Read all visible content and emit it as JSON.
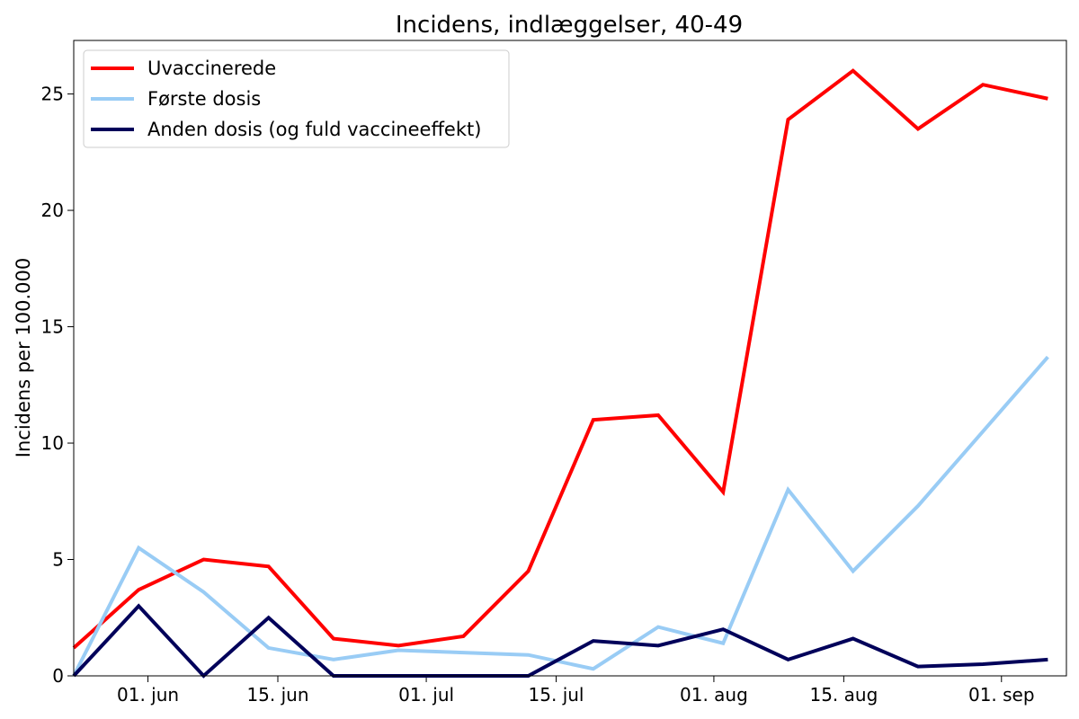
{
  "chart_data": {
    "type": "line",
    "title": "Incidens, indlæggelser, 40-49",
    "xlabel": "",
    "ylabel": "Incidens per 100.000",
    "xlim": [
      "2021-05-24",
      "2021-09-08"
    ],
    "ylim": [
      0,
      27.3
    ],
    "x_ticks": [
      {
        "date": "2021-06-01",
        "label": "01. jun"
      },
      {
        "date": "2021-06-15",
        "label": "15. jun"
      },
      {
        "date": "2021-07-01",
        "label": "01. jul"
      },
      {
        "date": "2021-07-15",
        "label": "15. jul"
      },
      {
        "date": "2021-08-01",
        "label": "01. aug"
      },
      {
        "date": "2021-08-15",
        "label": "15. aug"
      },
      {
        "date": "2021-09-01",
        "label": "01. sep"
      }
    ],
    "y_ticks": [
      0,
      5,
      10,
      15,
      20,
      25
    ],
    "grid": false,
    "legend_position": "top-left",
    "x": [
      "2021-05-24",
      "2021-05-31",
      "2021-06-07",
      "2021-06-14",
      "2021-06-21",
      "2021-06-28",
      "2021-07-05",
      "2021-07-12",
      "2021-07-19",
      "2021-07-26",
      "2021-08-02",
      "2021-08-09",
      "2021-08-16",
      "2021-08-23",
      "2021-08-30",
      "2021-09-06"
    ],
    "series": [
      {
        "name": "Uvaccinerede",
        "color": "#ff0000",
        "values": [
          1.2,
          3.7,
          5.0,
          4.7,
          1.6,
          1.3,
          1.7,
          4.5,
          11.0,
          11.2,
          7.9,
          23.9,
          26.0,
          23.5,
          25.4,
          24.8
        ]
      },
      {
        "name": "Første dosis",
        "color": "#99ccf5",
        "values": [
          0.0,
          5.5,
          3.6,
          1.2,
          0.7,
          1.1,
          1.0,
          0.9,
          0.3,
          2.1,
          1.4,
          8.0,
          4.5,
          7.3,
          10.5,
          13.7
        ]
      },
      {
        "name": "Anden dosis (og fuld vaccineeffekt)",
        "color": "#00005a",
        "values": [
          0.0,
          3.0,
          0.0,
          2.5,
          0.0,
          0.0,
          0.0,
          0.0,
          1.5,
          1.3,
          2.0,
          0.7,
          1.6,
          0.4,
          0.5,
          0.7
        ]
      }
    ]
  }
}
